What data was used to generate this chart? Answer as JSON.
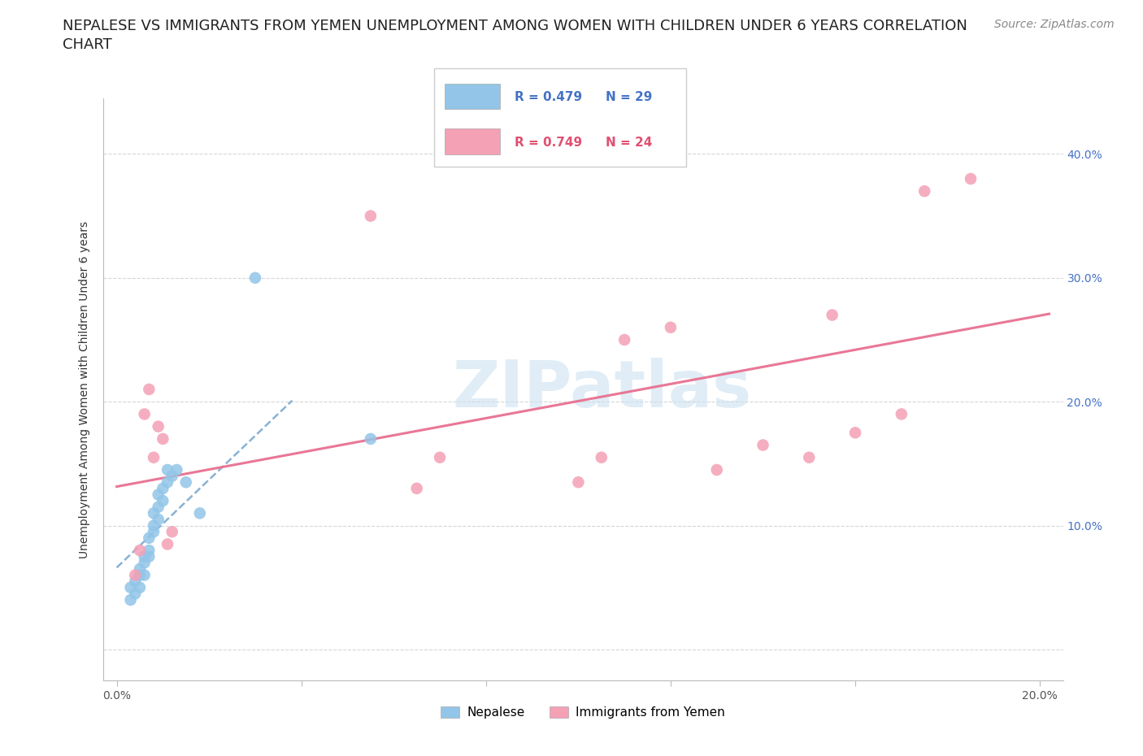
{
  "title_line1": "NEPALESE VS IMMIGRANTS FROM YEMEN UNEMPLOYMENT AMONG WOMEN WITH CHILDREN UNDER 6 YEARS CORRELATION",
  "title_line2": "CHART",
  "source": "Source: ZipAtlas.com",
  "ylabel": "Unemployment Among Women with Children Under 6 years",
  "legend_r1": "R = 0.479",
  "legend_n1": "N = 29",
  "legend_r2": "R = 0.749",
  "legend_n2": "N = 24",
  "watermark": "ZIPatlas",
  "blue_color": "#92C5E8",
  "pink_color": "#F4A0B5",
  "blue_line_color": "#7AAAD0",
  "pink_line_color": "#E87090",
  "blue_scatter_x": [
    0.003,
    0.003,
    0.004,
    0.004,
    0.005,
    0.005,
    0.005,
    0.006,
    0.006,
    0.006,
    0.007,
    0.007,
    0.007,
    0.008,
    0.008,
    0.008,
    0.009,
    0.009,
    0.009,
    0.01,
    0.01,
    0.011,
    0.011,
    0.012,
    0.013,
    0.015,
    0.018,
    0.03,
    0.055
  ],
  "blue_scatter_y": [
    0.05,
    0.04,
    0.055,
    0.045,
    0.06,
    0.065,
    0.05,
    0.07,
    0.075,
    0.06,
    0.08,
    0.09,
    0.075,
    0.1,
    0.11,
    0.095,
    0.115,
    0.125,
    0.105,
    0.13,
    0.12,
    0.135,
    0.145,
    0.14,
    0.145,
    0.135,
    0.11,
    0.3,
    0.17
  ],
  "pink_scatter_x": [
    0.004,
    0.005,
    0.006,
    0.007,
    0.008,
    0.009,
    0.01,
    0.011,
    0.012,
    0.055,
    0.065,
    0.07,
    0.1,
    0.105,
    0.11,
    0.12,
    0.13,
    0.14,
    0.15,
    0.155,
    0.16,
    0.17,
    0.175,
    0.185
  ],
  "pink_scatter_y": [
    0.06,
    0.08,
    0.19,
    0.21,
    0.155,
    0.18,
    0.17,
    0.085,
    0.095,
    0.35,
    0.13,
    0.155,
    0.135,
    0.155,
    0.25,
    0.26,
    0.145,
    0.165,
    0.155,
    0.27,
    0.175,
    0.19,
    0.37,
    0.38
  ],
  "xlim": [
    -0.003,
    0.205
  ],
  "ylim": [
    -0.025,
    0.445
  ],
  "xtick_positions": [
    0.0,
    0.04,
    0.08,
    0.12,
    0.16,
    0.2
  ],
  "xtick_labels": [
    "0.0%",
    "",
    "",
    "",
    "",
    "20.0%"
  ],
  "ytick_positions": [
    0.0,
    0.1,
    0.2,
    0.3,
    0.4
  ],
  "ytick_right_labels": [
    "",
    "10.0%",
    "20.0%",
    "30.0%",
    "40.0%"
  ],
  "title_fontsize": 13,
  "source_fontsize": 10,
  "axis_label_fontsize": 10,
  "tick_fontsize": 10,
  "legend_fontsize": 11,
  "right_tick_color": "#4472C4"
}
